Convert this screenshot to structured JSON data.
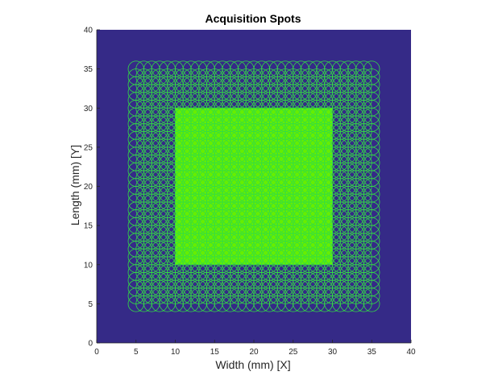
{
  "chart_data": {
    "type": "scatter",
    "title": "Acquisition Spots",
    "xlabel": "Width (mm) [X]",
    "ylabel": "Length (mm) [Y]",
    "xlim": [
      0,
      40
    ],
    "ylim": [
      0,
      40
    ],
    "xticks": [
      "0",
      "5",
      "10",
      "15",
      "20",
      "25",
      "30",
      "35",
      "40"
    ],
    "yticks": [
      "0",
      "5",
      "10",
      "15",
      "20",
      "25",
      "30",
      "35",
      "40"
    ],
    "grid": false,
    "legend": "none",
    "background_region": {
      "x": [
        0,
        40
      ],
      "y": [
        0,
        40
      ],
      "color": "#352a87"
    },
    "inner_region": {
      "x": [
        10,
        30
      ],
      "y": [
        10,
        30
      ],
      "color": "#66ee00"
    },
    "spots": {
      "x_range": [
        5,
        35
      ],
      "y_range": [
        5,
        35
      ],
      "pitch_mm": 1,
      "radius_mm": 1,
      "color": "#33dd44",
      "count_per_axis": 31
    }
  }
}
